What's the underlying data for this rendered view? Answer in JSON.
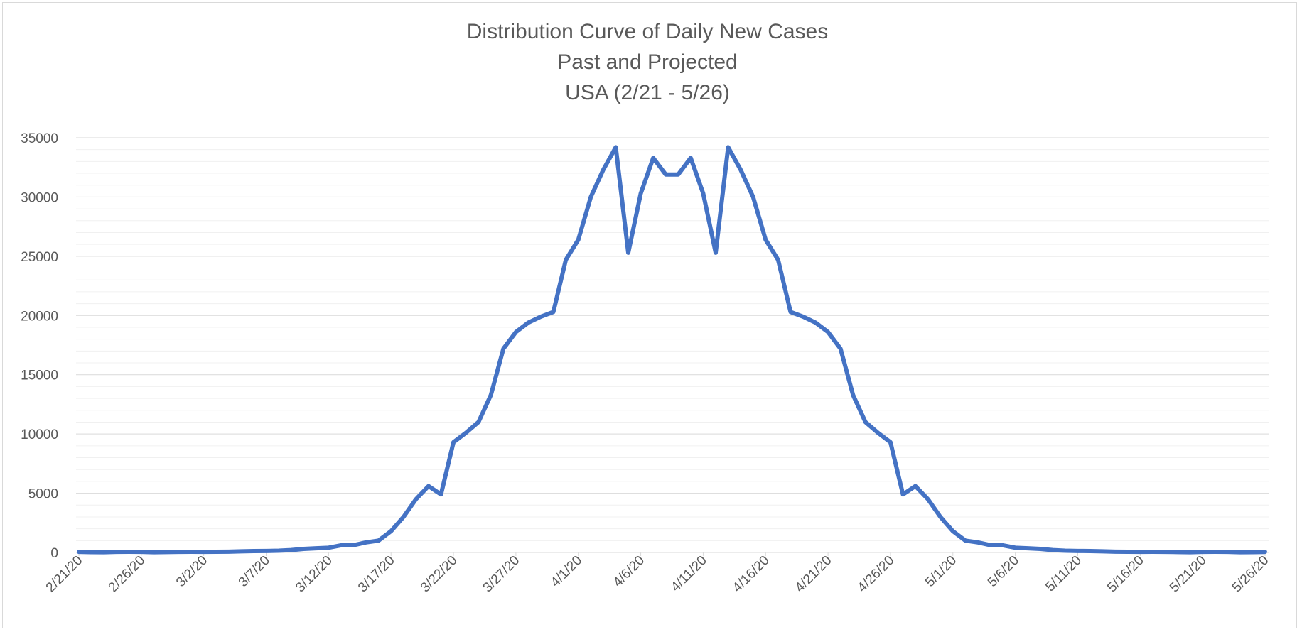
{
  "chart_data": {
    "type": "line",
    "title_lines": [
      "Distribution Curve of Daily New Cases",
      "Past and Projected",
      "USA (2/21 - 5/26)"
    ],
    "xlabel": "",
    "ylabel": "",
    "ylim": [
      0,
      35000
    ],
    "y_ticks": [
      "0",
      "5000",
      "10000",
      "15000",
      "20000",
      "25000",
      "30000",
      "35000"
    ],
    "x_tick_labels": [
      "2/21/20",
      "2/26/20",
      "3/2/20",
      "3/7/20",
      "3/12/20",
      "3/17/20",
      "3/22/20",
      "3/27/20",
      "4/1/20",
      "4/6/20",
      "4/11/20",
      "4/16/20",
      "4/21/20",
      "4/26/20",
      "5/1/20",
      "5/6/20",
      "5/11/20",
      "5/16/20",
      "5/21/20",
      "5/26/20"
    ],
    "grid": true,
    "legend": "none",
    "line_color": "#4472c4",
    "series": [
      {
        "values": [
          50,
          30,
          20,
          50,
          60,
          50,
          20,
          40,
          50,
          60,
          50,
          60,
          70,
          100,
          120,
          130,
          150,
          200,
          300,
          350,
          400,
          600,
          620,
          850,
          1000,
          1800,
          3000,
          4500,
          5600,
          4900,
          9300,
          10100,
          11000,
          13300,
          17200,
          18600,
          19400,
          19900,
          20300,
          24700,
          26400,
          30000,
          32300,
          34200,
          25300,
          30300,
          33300,
          31900,
          31900,
          33300,
          30300,
          25300,
          34200,
          32300,
          30000,
          26400,
          24700,
          20300,
          19900,
          19400,
          18600,
          17200,
          13300,
          11000,
          10100,
          9300,
          4900,
          5600,
          4500,
          3000,
          1800,
          1000,
          850,
          620,
          600,
          400,
          350,
          300,
          200,
          150,
          130,
          120,
          100,
          70,
          60,
          50,
          60,
          50,
          40,
          20,
          50,
          60,
          50,
          20,
          30,
          50
        ]
      }
    ]
  }
}
